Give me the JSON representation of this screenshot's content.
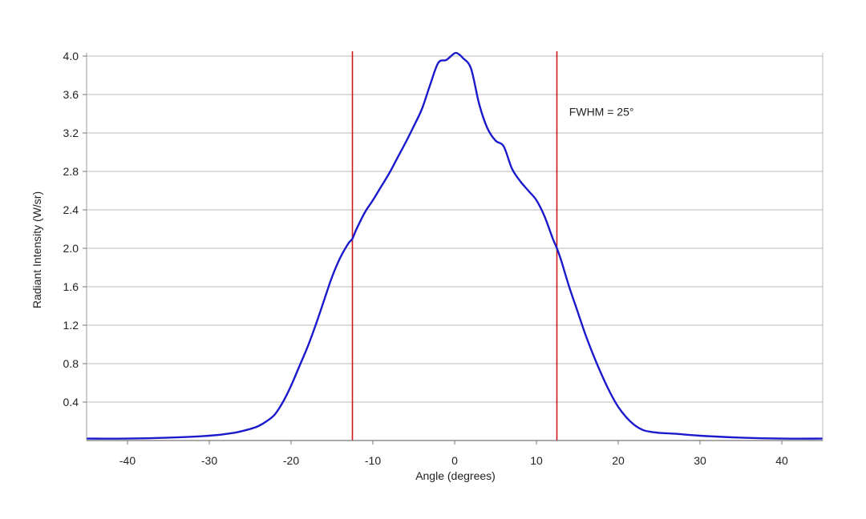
{
  "chart_data": {
    "type": "line",
    "title": "",
    "xlabel": "Angle (degrees)",
    "ylabel": "Radiant Intensity (W/sr)",
    "xlim": [
      -45,
      45
    ],
    "ylim": [
      0,
      4.1
    ],
    "x_ticks": [
      -40,
      -30,
      -20,
      -10,
      0,
      10,
      20,
      30,
      40
    ],
    "x_tick_labels": [
      "-40",
      "-30",
      "-20",
      "-10",
      "0",
      "10",
      "20",
      "30",
      "40"
    ],
    "y_ticks": [
      0.4,
      0.8,
      1.2,
      1.6,
      2.0,
      2.4,
      2.8,
      3.2,
      3.6,
      4.0
    ],
    "y_tick_labels": [
      "0.4",
      "0.8",
      "1.2",
      "1.6",
      "2.0",
      "2.4",
      "2.8",
      "3.2",
      "3.6",
      "4.0"
    ],
    "grid": "horizontal",
    "series": [
      {
        "color": "#1a1acc",
        "x": [
          -45,
          -40,
          -35,
          -30,
          -27,
          -25,
          -24,
          -23,
          -22,
          -21,
          -20,
          -19,
          -18,
          -17,
          -16,
          -15,
          -14,
          -13,
          -12.5,
          -12,
          -11,
          -10,
          -9,
          -8,
          -7,
          -6,
          -5,
          -4,
          -3,
          -2,
          -1,
          0,
          0.5,
          1,
          2,
          3,
          4,
          5,
          6,
          7,
          8,
          9,
          10,
          11,
          12,
          12.5,
          13,
          14,
          15,
          16,
          17,
          18,
          19,
          20,
          21,
          22,
          23,
          24,
          25,
          27,
          30,
          35,
          40,
          45
        ],
        "y": [
          0.02,
          0.02,
          0.03,
          0.05,
          0.08,
          0.12,
          0.15,
          0.2,
          0.27,
          0.4,
          0.57,
          0.77,
          0.97,
          1.2,
          1.45,
          1.7,
          1.9,
          2.05,
          2.1,
          2.2,
          2.37,
          2.5,
          2.64,
          2.78,
          2.94,
          3.1,
          3.27,
          3.45,
          3.7,
          3.93,
          3.96,
          4.03,
          4.02,
          3.98,
          3.87,
          3.5,
          3.25,
          3.12,
          3.06,
          2.83,
          2.7,
          2.6,
          2.5,
          2.33,
          2.1,
          2.0,
          1.88,
          1.6,
          1.35,
          1.1,
          0.88,
          0.68,
          0.5,
          0.35,
          0.24,
          0.16,
          0.11,
          0.09,
          0.08,
          0.07,
          0.05,
          0.03,
          0.02,
          0.02
        ]
      }
    ],
    "reference_lines": [
      {
        "x": -12.5,
        "color": "#d01818"
      },
      {
        "x": 12.5,
        "color": "#d01818"
      }
    ],
    "annotations": [
      {
        "text": "FWHM = 25°",
        "x": 14,
        "y": 3.38
      }
    ]
  }
}
